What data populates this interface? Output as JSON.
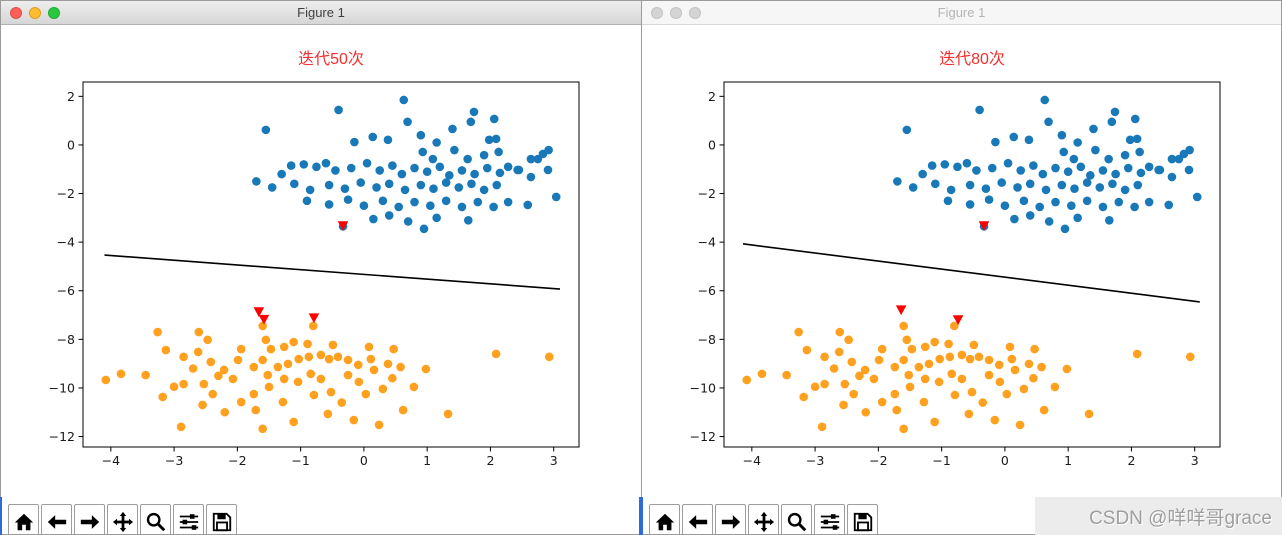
{
  "window_chrome": {
    "left": {
      "title": "Figure 1",
      "state": "active"
    },
    "right": {
      "title": "Figure 1",
      "state": "inactive"
    }
  },
  "toolbar": {
    "buttons": [
      "home",
      "back",
      "forward",
      "pan",
      "zoom",
      "configure-subplots",
      "save"
    ]
  },
  "watermark": {
    "text": "CSDN @咩咩哥grace"
  },
  "colors": {
    "cluster_blue": "#1878b8",
    "cluster_orange": "#ffa01e",
    "marker_red": "#ff0000",
    "title_red": "#f23030",
    "boundary_line": "#000000"
  },
  "chart_data": {
    "type": "scatter",
    "xlim": [
      -4.44,
      3.4
    ],
    "ylim": [
      -12.43,
      2.59
    ],
    "xticks": [
      -4,
      -3,
      -2,
      -1,
      0,
      1,
      2,
      3
    ],
    "yticks": [
      2,
      0,
      -2,
      -4,
      -6,
      -8,
      -10,
      -12
    ],
    "grid": false,
    "legend": "none",
    "shared_series": [
      {
        "name": "cluster-blue",
        "color": "#1878b8",
        "points": [
          [
            0.63,
            1.85
          ],
          [
            -0.4,
            1.44
          ],
          [
            -1.55,
            0.62
          ],
          [
            0.69,
            0.95
          ],
          [
            1.74,
            1.36
          ],
          [
            1.4,
            0.66
          ],
          [
            2.06,
            1.07
          ],
          [
            1.69,
            0.95
          ],
          [
            -0.15,
            0.12
          ],
          [
            0.14,
            0.33
          ],
          [
            0.38,
            0.21
          ],
          [
            0.9,
            0.4
          ],
          [
            1.15,
            0.1
          ],
          [
            0.93,
            -0.29
          ],
          [
            1.09,
            -0.58
          ],
          [
            1.43,
            -0.21
          ],
          [
            1.64,
            -0.58
          ],
          [
            1.9,
            -0.42
          ],
          [
            2.09,
            0.25
          ],
          [
            2.13,
            -0.29
          ],
          [
            1.98,
            0.21
          ],
          [
            2.43,
            -1.03
          ],
          [
            2.64,
            -0.58
          ],
          [
            2.83,
            -0.37
          ],
          [
            2.92,
            -0.21
          ],
          [
            2.75,
            -0.58
          ],
          [
            2.91,
            -1.03
          ],
          [
            2.45,
            -1.03
          ],
          [
            2.28,
            -0.9
          ],
          [
            2.64,
            -1.32
          ],
          [
            3.04,
            -2.14
          ],
          [
            2.59,
            -2.47
          ],
          [
            2.28,
            -2.35
          ],
          [
            -1.15,
            -0.85
          ],
          [
            -0.95,
            -0.8
          ],
          [
            -0.75,
            -0.9
          ],
          [
            -1.3,
            -1.2
          ],
          [
            -0.6,
            -0.75
          ],
          [
            -0.45,
            -1.05
          ],
          [
            -0.2,
            -0.95
          ],
          [
            0.05,
            -0.75
          ],
          [
            0.25,
            -1.05
          ],
          [
            0.45,
            -0.85
          ],
          [
            0.6,
            -1.2
          ],
          [
            0.8,
            -0.95
          ],
          [
            1.0,
            -1.1
          ],
          [
            1.2,
            -0.9
          ],
          [
            1.35,
            -1.25
          ],
          [
            1.55,
            -1.05
          ],
          [
            1.75,
            -1.2
          ],
          [
            1.95,
            -0.95
          ],
          [
            2.15,
            -1.15
          ],
          [
            -1.7,
            -1.5
          ],
          [
            -1.45,
            -1.75
          ],
          [
            -1.1,
            -1.6
          ],
          [
            -0.85,
            -1.85
          ],
          [
            -0.55,
            -1.65
          ],
          [
            -0.3,
            -1.8
          ],
          [
            -0.05,
            -1.55
          ],
          [
            0.2,
            -1.75
          ],
          [
            0.4,
            -1.6
          ],
          [
            0.65,
            -1.85
          ],
          [
            0.9,
            -1.65
          ],
          [
            1.1,
            -1.8
          ],
          [
            1.3,
            -1.55
          ],
          [
            1.5,
            -1.75
          ],
          [
            1.7,
            -1.6
          ],
          [
            1.9,
            -1.85
          ],
          [
            2.1,
            -1.65
          ],
          [
            -0.9,
            -2.3
          ],
          [
            -0.55,
            -2.45
          ],
          [
            -0.25,
            -2.25
          ],
          [
            0.0,
            -2.5
          ],
          [
            0.3,
            -2.3
          ],
          [
            0.55,
            -2.55
          ],
          [
            0.8,
            -2.35
          ],
          [
            1.05,
            -2.5
          ],
          [
            1.3,
            -2.3
          ],
          [
            1.55,
            -2.55
          ],
          [
            1.8,
            -2.35
          ],
          [
            2.05,
            -2.55
          ],
          [
            0.15,
            -3.05
          ],
          [
            0.7,
            -3.15
          ],
          [
            1.15,
            -3.0
          ],
          [
            1.65,
            -3.1
          ],
          [
            0.95,
            -3.45
          ],
          [
            0.4,
            -2.9
          ],
          [
            -0.33,
            -3.35
          ]
        ]
      },
      {
        "name": "cluster-orange",
        "color": "#ffa01e",
        "points": [
          [
            -3.26,
            -7.7
          ],
          [
            -2.61,
            -7.7
          ],
          [
            -2.47,
            -8.02
          ],
          [
            -3.13,
            -8.44
          ],
          [
            -2.85,
            -8.72
          ],
          [
            -2.62,
            -8.52
          ],
          [
            -2.42,
            -8.93
          ],
          [
            -3.84,
            -9.42
          ],
          [
            -4.08,
            -9.67
          ],
          [
            -3.45,
            -9.47
          ],
          [
            -3.18,
            -10.37
          ],
          [
            -2.85,
            -9.84
          ],
          [
            -2.53,
            -9.84
          ],
          [
            -2.39,
            -10.25
          ],
          [
            -2.89,
            -11.6
          ],
          [
            -2.21,
            -9.26
          ],
          [
            -2.07,
            -9.63
          ],
          [
            -1.94,
            -8.4
          ],
          [
            -1.99,
            -8.85
          ],
          [
            -1.74,
            -9.14
          ],
          [
            -1.55,
            -8.02
          ],
          [
            -1.47,
            -8.4
          ],
          [
            -1.6,
            -8.85
          ],
          [
            -1.26,
            -8.31
          ],
          [
            -1.11,
            -8.11
          ],
          [
            -1.36,
            -9.14
          ],
          [
            -1.2,
            -9.01
          ],
          [
            -1.03,
            -8.81
          ],
          [
            -0.87,
            -8.72
          ],
          [
            -0.68,
            -8.64
          ],
          [
            -0.55,
            -8.81
          ],
          [
            -0.41,
            -8.72
          ],
          [
            -0.25,
            -8.85
          ],
          [
            -0.09,
            -9.05
          ],
          [
            0.08,
            -8.31
          ],
          [
            -0.49,
            -8.23
          ],
          [
            -0.89,
            -8.19
          ],
          [
            -1.5,
            -9.96
          ],
          [
            -1.74,
            -10.25
          ],
          [
            -1.94,
            -10.58
          ],
          [
            -1.71,
            -10.91
          ],
          [
            -1.52,
            -9.47
          ],
          [
            -1.26,
            -9.63
          ],
          [
            -1.04,
            -9.75
          ],
          [
            -0.84,
            -9.42
          ],
          [
            -0.68,
            -9.63
          ],
          [
            -0.79,
            -10.29
          ],
          [
            -0.52,
            -10.17
          ],
          [
            -1.28,
            -10.58
          ],
          [
            -1.11,
            -11.4
          ],
          [
            -1.6,
            -11.68
          ],
          [
            -0.25,
            -9.47
          ],
          [
            -0.08,
            -9.75
          ],
          [
            0.16,
            -9.26
          ],
          [
            0.38,
            -9.01
          ],
          [
            0.11,
            -8.81
          ],
          [
            0.58,
            -9.14
          ],
          [
            0.03,
            -10.25
          ],
          [
            0.3,
            -10.04
          ],
          [
            -0.57,
            -11.07
          ],
          [
            -0.16,
            -11.32
          ],
          [
            0.24,
            -11.52
          ],
          [
            0.62,
            -10.91
          ],
          [
            0.79,
            -9.96
          ],
          [
            0.98,
            -9.22
          ],
          [
            1.33,
            -11.07
          ],
          [
            2.09,
            -8.6
          ],
          [
            2.93,
            -8.72
          ],
          [
            0.47,
            -8.4
          ],
          [
            -1.6,
            -7.45
          ],
          [
            -0.8,
            -7.45
          ],
          [
            -2.2,
            -11.0
          ],
          [
            -2.55,
            -10.7
          ],
          [
            -3.0,
            -9.95
          ],
          [
            -0.35,
            -10.6
          ],
          [
            0.45,
            -9.6
          ],
          [
            -2.3,
            -9.5
          ],
          [
            -2.7,
            -9.2
          ]
        ]
      }
    ],
    "charts": [
      {
        "title": "迭代50次",
        "boundary_line": [
          [
            -4.1,
            -4.53
          ],
          [
            3.1,
            -5.93
          ]
        ],
        "marker": "triangle-down",
        "marker_color": "#ff0000",
        "misclassified_markers": [
          [
            -0.33,
            -3.33
          ],
          [
            -1.66,
            -6.87
          ],
          [
            -1.58,
            -7.18
          ],
          [
            -0.79,
            -7.12
          ]
        ]
      },
      {
        "title": "迭代80次",
        "boundary_line": [
          [
            -4.14,
            -4.07
          ],
          [
            3.08,
            -6.46
          ]
        ],
        "marker": "triangle-down",
        "marker_color": "#ff0000",
        "misclassified_markers": [
          [
            -0.33,
            -3.33
          ],
          [
            -1.64,
            -6.79
          ],
          [
            -0.74,
            -7.2
          ]
        ]
      }
    ]
  }
}
